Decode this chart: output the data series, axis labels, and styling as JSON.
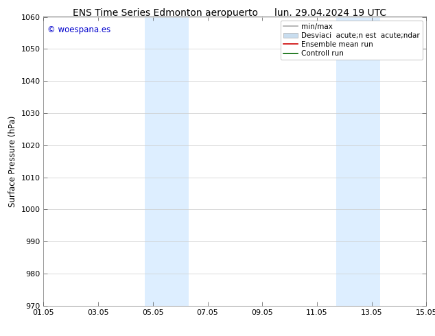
{
  "title_left": "ENS Time Series Edmonton aeropuerto",
  "title_right": "lun. 29.04.2024 19 UTC",
  "ylabel": "Surface Pressure (hPa)",
  "ylim": [
    970,
    1060
  ],
  "yticks": [
    970,
    980,
    990,
    1000,
    1010,
    1020,
    1030,
    1040,
    1050,
    1060
  ],
  "xlim": [
    0,
    14
  ],
  "xtick_positions": [
    0,
    2,
    4,
    6,
    8,
    10,
    12,
    14
  ],
  "xtick_labels": [
    "01.05",
    "03.05",
    "05.05",
    "07.05",
    "09.05",
    "11.05",
    "13.05",
    "15.05"
  ],
  "shaded_regions": [
    {
      "xmin": 3.7,
      "xmax": 5.3,
      "color": "#ddeeff"
    },
    {
      "xmin": 10.7,
      "xmax": 12.3,
      "color": "#ddeeff"
    }
  ],
  "watermark_text": "© woespana.es",
  "watermark_color": "#0000cc",
  "legend_entries": [
    {
      "label": "min/max",
      "color": "#aaaaaa",
      "lw": 1.2,
      "style": "line"
    },
    {
      "label": "Desviaci  acute;n est  acute;ndar",
      "color": "#c8ddef",
      "lw": 7,
      "style": "band"
    },
    {
      "label": "Ensemble mean run",
      "color": "#cc0000",
      "lw": 1.2,
      "style": "line"
    },
    {
      "label": "Controll run",
      "color": "#006600",
      "lw": 1.2,
      "style": "line"
    }
  ],
  "bg_color": "#ffffff",
  "grid_color": "#cccccc",
  "title_fontsize": 10,
  "tick_fontsize": 8,
  "ylabel_fontsize": 8.5,
  "legend_fontsize": 7.5,
  "watermark_fontsize": 8.5
}
